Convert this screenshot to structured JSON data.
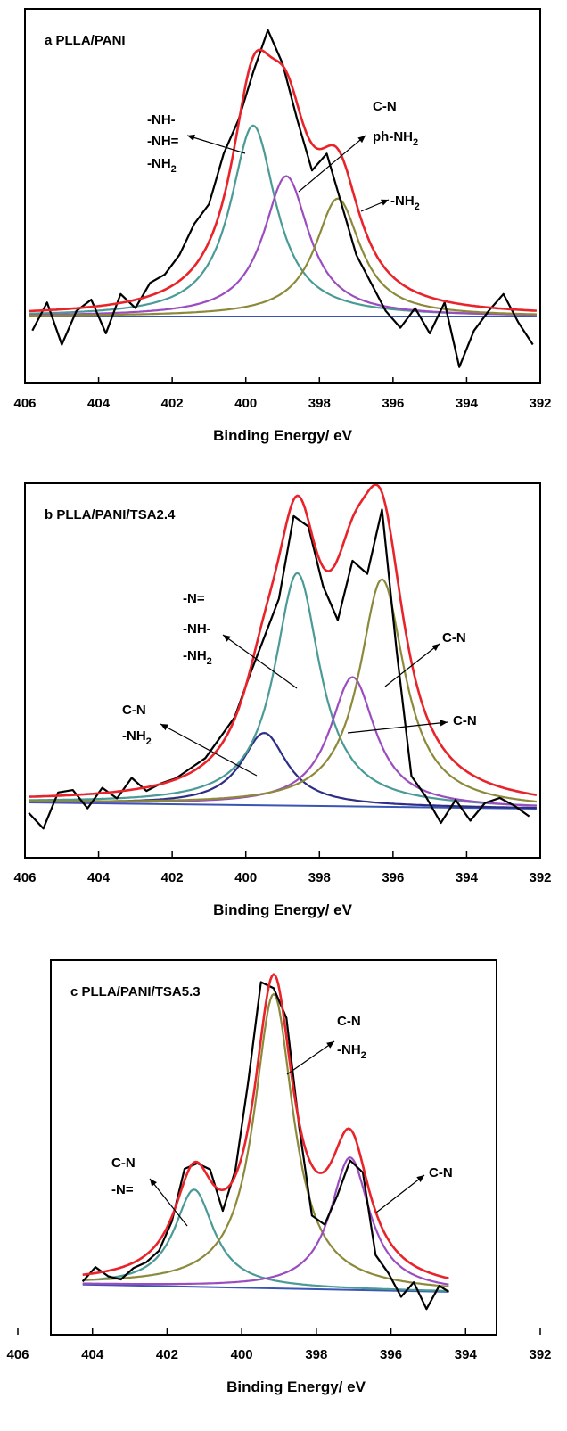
{
  "chart_data": [
    {
      "type": "line",
      "title": "a PLLA/PANI",
      "xlabel": "Binding Energy/ eV",
      "xlim": [
        406,
        392
      ],
      "x_reversed": true,
      "x_ticks": [
        "406",
        "404",
        "402",
        "400",
        "398",
        "396",
        "394",
        "392"
      ],
      "y_axis_labels": "none",
      "grid": false,
      "colors": {
        "raw": "#000000",
        "envelope": "#e8242a",
        "background": "#3a55b4",
        "teal": "#4a9a96",
        "purple": "#9b4dc0",
        "olive": "#8c8a3a"
      },
      "peaks": [
        {
          "center": 399.8,
          "height": 0.68,
          "color_name": "teal"
        },
        {
          "center": 398.9,
          "height": 0.5,
          "color_name": "purple"
        },
        {
          "center": 397.5,
          "height": 0.42,
          "color_name": "olive"
        }
      ],
      "raw_observed": {
        "x": [
          405.8,
          405.4,
          405.0,
          404.6,
          404.2,
          403.8,
          403.4,
          403.0,
          402.6,
          402.2,
          401.8,
          401.4,
          401.0,
          400.6,
          400.2,
          399.8,
          399.4,
          399.0,
          398.6,
          398.2,
          397.8,
          397.4,
          397.0,
          396.6,
          396.2,
          395.8,
          395.4,
          395.0,
          394.6,
          394.2,
          393.8,
          393.4,
          393.0,
          392.6,
          392.2
        ],
        "y": [
          -0.05,
          0.05,
          -0.1,
          0.02,
          0.06,
          -0.06,
          0.08,
          0.03,
          0.12,
          0.15,
          0.22,
          0.33,
          0.4,
          0.58,
          0.7,
          0.87,
          1.02,
          0.9,
          0.7,
          0.52,
          0.58,
          0.4,
          0.22,
          0.12,
          0.02,
          -0.04,
          0.03,
          -0.06,
          0.05,
          -0.18,
          -0.05,
          0.02,
          0.08,
          -0.02,
          -0.1
        ]
      },
      "annotations": [
        {
          "text": "-NH-"
        },
        {
          "text": "-NH="
        },
        {
          "text": "-NH",
          "sub": "2"
        },
        {
          "text": "C-N"
        },
        {
          "text": "ph-NH",
          "sub": "2"
        },
        {
          "text": "-NH",
          "sub": "2"
        }
      ]
    },
    {
      "type": "line",
      "title": "b PLLA/PANI/TSA2.4",
      "xlabel": "Binding Energy/ eV",
      "xlim": [
        406,
        392
      ],
      "x_reversed": true,
      "x_ticks": [
        "406",
        "404",
        "402",
        "400",
        "398",
        "396",
        "394",
        "392"
      ],
      "y_axis_labels": "none",
      "grid": false,
      "colors": {
        "raw": "#000000",
        "envelope": "#e8242a",
        "background": "#3a55b4",
        "teal": "#4a9a96",
        "purple": "#9b4dc0",
        "olive": "#8c8a3a",
        "navy": "#2e2e86"
      },
      "peaks": [
        {
          "center": 399.5,
          "height": 0.28,
          "color_name": "navy"
        },
        {
          "center": 398.6,
          "height": 0.9,
          "color_name": "teal"
        },
        {
          "center": 397.1,
          "height": 0.5,
          "color_name": "purple"
        },
        {
          "center": 396.3,
          "height": 0.88,
          "color_name": "olive"
        }
      ],
      "raw_observed": {
        "x": [
          405.9,
          405.5,
          405.1,
          404.7,
          404.3,
          403.9,
          403.5,
          403.1,
          402.7,
          402.3,
          401.9,
          401.5,
          401.1,
          400.7,
          400.3,
          399.9,
          399.5,
          399.1,
          398.7,
          398.3,
          397.9,
          397.5,
          397.1,
          396.7,
          396.3,
          395.9,
          395.5,
          395.1,
          394.7,
          394.3,
          393.9,
          393.5,
          393.1,
          392.7,
          392.3
        ],
        "y": [
          -0.04,
          -0.1,
          0.04,
          0.05,
          -0.02,
          0.06,
          0.02,
          0.1,
          0.05,
          0.08,
          0.1,
          0.14,
          0.18,
          0.26,
          0.34,
          0.5,
          0.65,
          0.8,
          1.12,
          1.08,
          0.85,
          0.72,
          0.95,
          0.9,
          1.15,
          0.6,
          0.12,
          0.04,
          -0.06,
          0.03,
          -0.05,
          0.02,
          0.04,
          0.01,
          -0.03
        ]
      },
      "annotations": [
        {
          "text": "-N="
        },
        {
          "text": "-NH-"
        },
        {
          "text": "-NH",
          "sub": "2"
        },
        {
          "text": "C-N"
        },
        {
          "text": "-NH",
          "sub": "2"
        },
        {
          "text": "C-N"
        },
        {
          "text": "C-N"
        }
      ]
    },
    {
      "type": "line",
      "title": "c PLLA/PANI/TSA5.3",
      "xlabel": "Binding Energy/ eV",
      "xlim": [
        406,
        392
      ],
      "x_reversed": true,
      "x_ticks": [
        "406",
        "404",
        "402",
        "400",
        "398",
        "396",
        "394",
        "392"
      ],
      "y_axis_labels": "none",
      "grid": false,
      "colors": {
        "raw": "#000000",
        "envelope": "#e8242a",
        "background": "#3a55b4",
        "teal": "#4a9a96",
        "purple": "#9b4dc0",
        "olive": "#8c8a3a"
      },
      "peaks": [
        {
          "center": 401.5,
          "height": 0.33,
          "color_name": "teal"
        },
        {
          "center": 399.0,
          "height": 1.0,
          "color_name": "olive"
        },
        {
          "center": 396.6,
          "height": 0.45,
          "color_name": "purple"
        }
      ],
      "raw_observed": {
        "x": [
          405.0,
          404.6,
          404.2,
          403.8,
          403.4,
          403.0,
          402.6,
          402.2,
          401.8,
          401.4,
          401.0,
          400.6,
          400.2,
          399.8,
          399.4,
          399.0,
          398.6,
          398.2,
          397.8,
          397.4,
          397.0,
          396.6,
          396.2,
          395.8,
          395.4,
          395.0,
          394.6,
          394.2,
          393.8,
          393.5
        ],
        "y": [
          0.01,
          0.06,
          0.03,
          0.02,
          0.06,
          0.08,
          0.12,
          0.22,
          0.4,
          0.42,
          0.4,
          0.26,
          0.4,
          0.7,
          1.04,
          1.02,
          0.92,
          0.55,
          0.25,
          0.22,
          0.32,
          0.44,
          0.4,
          0.12,
          0.06,
          -0.02,
          0.03,
          -0.06,
          0.02,
          0.0
        ]
      },
      "annotations": [
        {
          "text": "C-N"
        },
        {
          "text": "-NH",
          "sub": "2"
        },
        {
          "text": "C-N"
        },
        {
          "text": "-N="
        },
        {
          "text": "C-N"
        }
      ]
    }
  ]
}
